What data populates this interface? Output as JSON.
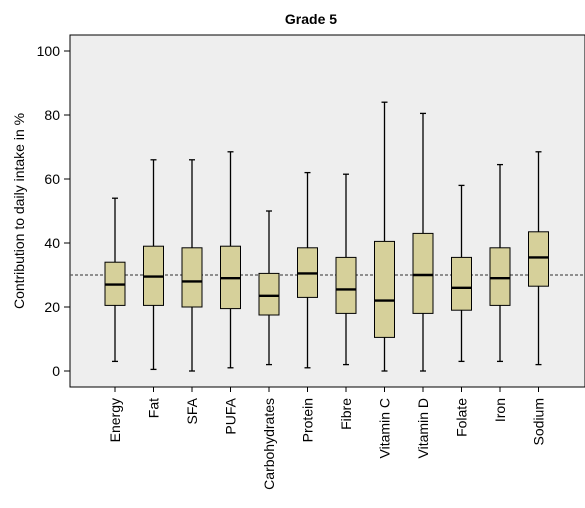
{
  "chart_data": {
    "type": "box",
    "title": "Grade 5",
    "xlabel": "",
    "ylabel": "Contribution to daily intake in %",
    "ylim": [
      -5,
      105
    ],
    "yticks": [
      0,
      20,
      40,
      60,
      80,
      100
    ],
    "reference_line": 30,
    "grid": false,
    "box_color": "#d6d09a",
    "plot_background": "#eeeeee",
    "categories": [
      "Energy",
      "Fat",
      "SFA",
      "PUFA",
      "Carbohydrates",
      "Protein",
      "Fibre",
      "Vitamin C",
      "Vitamin D",
      "Folate",
      "Iron",
      "Sodium"
    ],
    "boxes": [
      {
        "min": 3,
        "q1": 20.5,
        "median": 27,
        "q3": 34,
        "max": 54
      },
      {
        "min": 0.5,
        "q1": 20.5,
        "median": 29.5,
        "q3": 39,
        "max": 66
      },
      {
        "min": 0,
        "q1": 20,
        "median": 28,
        "q3": 38.5,
        "max": 66
      },
      {
        "min": 1,
        "q1": 19.5,
        "median": 29,
        "q3": 39,
        "max": 68.5
      },
      {
        "min": 2,
        "q1": 17.5,
        "median": 23.5,
        "q3": 30.5,
        "max": 50
      },
      {
        "min": 1,
        "q1": 23,
        "median": 30.5,
        "q3": 38.5,
        "max": 62
      },
      {
        "min": 2,
        "q1": 18,
        "median": 25.5,
        "q3": 35.5,
        "max": 61.5
      },
      {
        "min": 0,
        "q1": 10.5,
        "median": 22,
        "q3": 40.5,
        "max": 84
      },
      {
        "min": 0,
        "q1": 18,
        "median": 30,
        "q3": 43,
        "max": 80.5
      },
      {
        "min": 3,
        "q1": 19,
        "median": 26,
        "q3": 35.5,
        "max": 58
      },
      {
        "min": 3,
        "q1": 20.5,
        "median": 29,
        "q3": 38.5,
        "max": 64.5
      },
      {
        "min": 2,
        "q1": 26.5,
        "median": 35.5,
        "q3": 43.5,
        "max": 68.5
      }
    ]
  }
}
